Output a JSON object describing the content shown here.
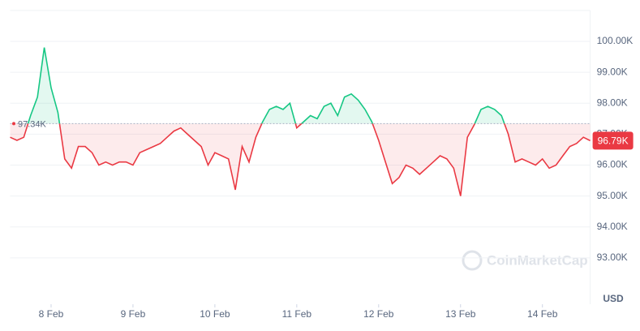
{
  "chart_data": {
    "type": "line",
    "y_axis_label": "USD",
    "watermark": "CoinMarketCap",
    "baseline": 97.34,
    "baseline_label": "97.34K",
    "last_label": "96.79K",
    "up_color": "#16c784",
    "down_color": "#ea3943",
    "grid": true,
    "xlim": [
      0,
      85
    ],
    "xticks": [
      {
        "value": 6,
        "label": "8 Feb"
      },
      {
        "value": 18,
        "label": "9 Feb"
      },
      {
        "value": 30,
        "label": "10 Feb"
      },
      {
        "value": 42,
        "label": "11 Feb"
      },
      {
        "value": 54,
        "label": "12 Feb"
      },
      {
        "value": 66,
        "label": "13 Feb"
      },
      {
        "value": 78,
        "label": "14 Feb"
      }
    ],
    "ylim": [
      91.5,
      101
    ],
    "yticks": [
      {
        "value": 93,
        "label": "93.00K"
      },
      {
        "value": 94,
        "label": "94.00K"
      },
      {
        "value": 95,
        "label": "95.00K"
      },
      {
        "value": 96,
        "label": "96.00K"
      },
      {
        "value": 97,
        "label": "97.00K"
      },
      {
        "value": 98,
        "label": "98.00K"
      },
      {
        "value": 99,
        "label": "99.00K"
      },
      {
        "value": 100,
        "label": "100.00K"
      }
    ],
    "values": [
      96.9,
      96.8,
      96.9,
      97.6,
      98.2,
      99.8,
      98.5,
      97.7,
      96.2,
      95.9,
      96.6,
      96.6,
      96.4,
      96.0,
      96.1,
      96.0,
      96.1,
      96.1,
      96.0,
      96.4,
      96.5,
      96.6,
      96.7,
      96.9,
      97.1,
      97.2,
      97.0,
      96.8,
      96.6,
      96.0,
      96.4,
      96.3,
      96.2,
      95.2,
      96.6,
      96.1,
      96.9,
      97.4,
      97.8,
      97.9,
      97.8,
      98.0,
      97.2,
      97.4,
      97.6,
      97.5,
      97.9,
      98.0,
      97.6,
      98.2,
      98.3,
      98.1,
      97.8,
      97.4,
      96.8,
      96.1,
      95.4,
      95.6,
      96.0,
      95.9,
      95.7,
      95.9,
      96.1,
      96.3,
      96.2,
      95.9,
      95.0,
      96.9,
      97.3,
      97.8,
      97.9,
      97.8,
      97.6,
      97.0,
      96.1,
      96.2,
      96.1,
      96.0,
      96.2,
      95.9,
      96.0,
      96.3,
      96.6,
      96.7,
      96.9,
      96.79
    ]
  }
}
